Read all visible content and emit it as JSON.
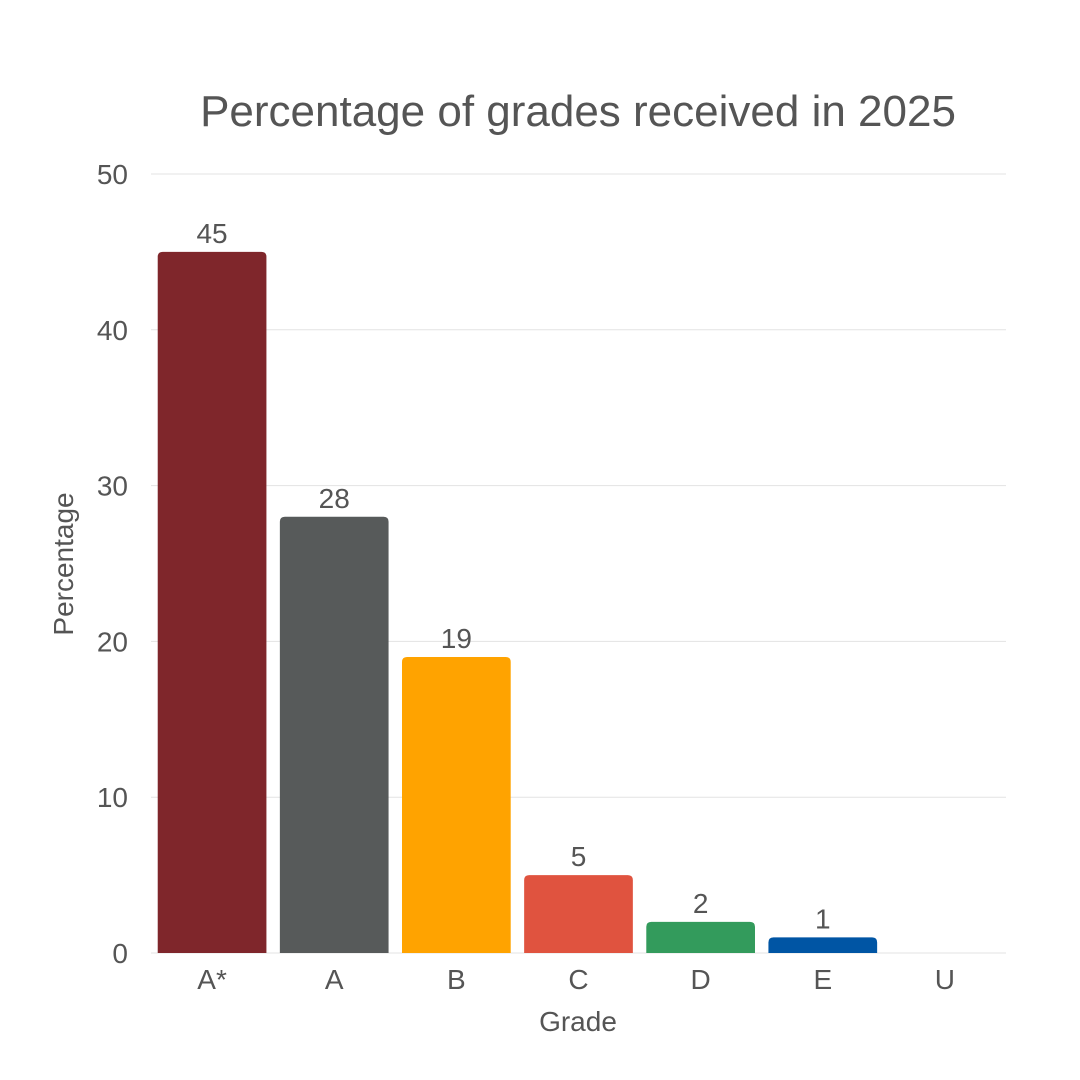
{
  "chart_data": {
    "type": "bar",
    "title": "Percentage of grades received in 2025",
    "xlabel": "Grade",
    "ylabel": "Percentage",
    "categories": [
      "A*",
      "A",
      "B",
      "C",
      "D",
      "E",
      "U"
    ],
    "values": [
      45,
      28,
      19,
      5,
      2,
      1,
      0
    ],
    "colors": [
      "#7f262b",
      "#575a5a",
      "#ffa300",
      "#e0533f",
      "#339b5c",
      "#0055a4",
      "#cccccc"
    ],
    "ylim": [
      0,
      50
    ],
    "yticks": [
      0,
      10,
      20,
      30,
      40,
      50
    ],
    "grid": true,
    "legend": "none"
  }
}
